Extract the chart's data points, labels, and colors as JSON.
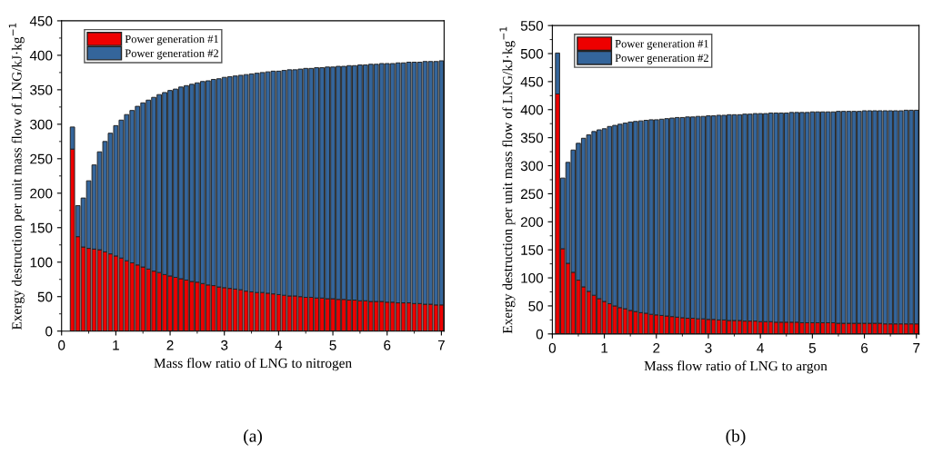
{
  "chart_data": [
    {
      "type": "bar",
      "stacked": true,
      "xlabel": "Mass flow ratio of LNG to nitrogen",
      "ylabel": "Exergy destruction per unit mass flow of LNG/kJ·kg$^{−1}$",
      "annotations": [
        "(a)"
      ],
      "x": [
        0.2,
        0.3,
        0.4,
        0.5,
        0.6,
        0.7,
        0.8,
        0.9,
        1.0,
        1.1,
        1.2,
        1.3,
        1.4,
        1.5,
        1.6,
        1.7,
        1.8,
        1.9,
        2.0,
        2.1,
        2.2,
        2.3,
        2.4,
        2.5,
        2.6,
        2.7,
        2.8,
        2.9,
        3.0,
        3.1,
        3.2,
        3.3,
        3.4,
        3.5,
        3.6,
        3.7,
        3.8,
        3.9,
        4.0,
        4.1,
        4.2,
        4.3,
        4.4,
        4.5,
        4.6,
        4.7,
        4.8,
        4.9,
        5.0,
        5.1,
        5.2,
        5.3,
        5.4,
        5.5,
        5.6,
        5.7,
        5.8,
        5.9,
        6.0,
        6.1,
        6.2,
        6.3,
        6.4,
        6.5,
        6.6,
        6.7,
        6.8,
        6.9,
        7.0
      ],
      "series": [
        {
          "name": "Power generation #1",
          "color": "#ee0000",
          "values": [
            264,
            137,
            122,
            120,
            119,
            118,
            115,
            112,
            109,
            106,
            102,
            99,
            96,
            93,
            90,
            87,
            85,
            82,
            80,
            78,
            76,
            74,
            72,
            71,
            69,
            67,
            66,
            64,
            63,
            62,
            61,
            60,
            58,
            57,
            56,
            56,
            55,
            54,
            53,
            52,
            51,
            51,
            50,
            49,
            49,
            48,
            48,
            47,
            47,
            46,
            46,
            45,
            45,
            44,
            44,
            43,
            43,
            43,
            42,
            42,
            41,
            41,
            41,
            40,
            40,
            39,
            39,
            38,
            38
          ]
        },
        {
          "name": "Power generation #2",
          "color": "#34659b",
          "values": [
            32,
            45,
            71,
            98,
            122,
            142,
            160,
            175,
            189,
            200,
            212,
            221,
            230,
            238,
            245,
            252,
            258,
            264,
            269,
            273,
            278,
            282,
            286,
            289,
            293,
            296,
            299,
            302,
            305,
            307,
            309,
            311,
            314,
            316,
            318,
            319,
            321,
            323,
            324,
            326,
            328,
            328,
            330,
            332,
            332,
            334,
            334,
            336,
            336,
            338,
            338,
            340,
            340,
            342,
            342,
            344,
            344,
            345,
            346,
            346,
            348,
            348,
            349,
            350,
            350,
            352,
            352,
            353,
            354
          ]
        }
      ],
      "xlim": [
        0,
        7.05
      ],
      "xticks": [
        0,
        1,
        2,
        3,
        4,
        5,
        6,
        7
      ],
      "ylim": [
        0,
        450
      ],
      "yticks": [
        0,
        50,
        100,
        150,
        200,
        250,
        300,
        350,
        400,
        450
      ],
      "legend": "top left",
      "grid": false
    },
    {
      "type": "bar",
      "stacked": true,
      "xlabel": "Mass flow ratio of LNG to argon",
      "ylabel": "Exergy destruction per unit mass flow of LNG/kJ·kg$^{−1}$",
      "annotations": [
        "(b)"
      ],
      "x": [
        0.1,
        0.2,
        0.3,
        0.4,
        0.5,
        0.6,
        0.7,
        0.8,
        0.9,
        1.0,
        1.1,
        1.2,
        1.3,
        1.4,
        1.5,
        1.6,
        1.7,
        1.8,
        1.9,
        2.0,
        2.1,
        2.2,
        2.3,
        2.4,
        2.5,
        2.6,
        2.7,
        2.8,
        2.9,
        3.0,
        3.1,
        3.2,
        3.3,
        3.4,
        3.5,
        3.6,
        3.7,
        3.8,
        3.9,
        4.0,
        4.1,
        4.2,
        4.3,
        4.4,
        4.5,
        4.6,
        4.7,
        4.8,
        4.9,
        5.0,
        5.1,
        5.2,
        5.3,
        5.4,
        5.5,
        5.6,
        5.7,
        5.8,
        5.9,
        6.0,
        6.1,
        6.2,
        6.3,
        6.4,
        6.5,
        6.6,
        6.7,
        6.8,
        6.9,
        7.0
      ],
      "series": [
        {
          "name": "Power generation #1",
          "color": "#ee0000",
          "values": [
            428,
            152,
            126,
            110,
            96,
            84,
            76,
            69,
            63,
            58,
            54,
            50,
            47,
            45,
            42,
            40,
            38,
            37,
            35,
            34,
            33,
            32,
            31,
            30,
            29,
            28,
            28,
            27,
            27,
            26,
            26,
            25,
            25,
            24,
            24,
            24,
            23,
            23,
            23,
            22,
            22,
            22,
            21,
            21,
            21,
            21,
            21,
            20,
            20,
            20,
            20,
            20,
            20,
            20,
            19,
            19,
            19,
            19,
            19,
            19,
            19,
            19,
            19,
            18,
            18,
            18,
            18,
            18,
            18,
            18
          ]
        },
        {
          "name": "Power generation #2",
          "color": "#34659b",
          "values": [
            73,
            126,
            180,
            218,
            244,
            265,
            279,
            292,
            301,
            308,
            316,
            322,
            327,
            331,
            336,
            339,
            342,
            344,
            347,
            348,
            350,
            352,
            354,
            356,
            357,
            359,
            359,
            361,
            361,
            363,
            363,
            365,
            365,
            367,
            367,
            367,
            369,
            369,
            370,
            371,
            371,
            372,
            373,
            373,
            373,
            374,
            374,
            375,
            375,
            376,
            376,
            376,
            376,
            376,
            378,
            378,
            378,
            378,
            378,
            379,
            379,
            379,
            379,
            380,
            380,
            380,
            380,
            381,
            381,
            381
          ]
        }
      ],
      "xlim": [
        0,
        7.05
      ],
      "xticks": [
        0,
        1,
        2,
        3,
        4,
        5,
        6,
        7
      ],
      "ylim": [
        0,
        550
      ],
      "yticks": [
        0,
        50,
        100,
        150,
        200,
        250,
        300,
        350,
        400,
        450,
        500,
        550
      ],
      "legend": "top left",
      "grid": false
    }
  ]
}
